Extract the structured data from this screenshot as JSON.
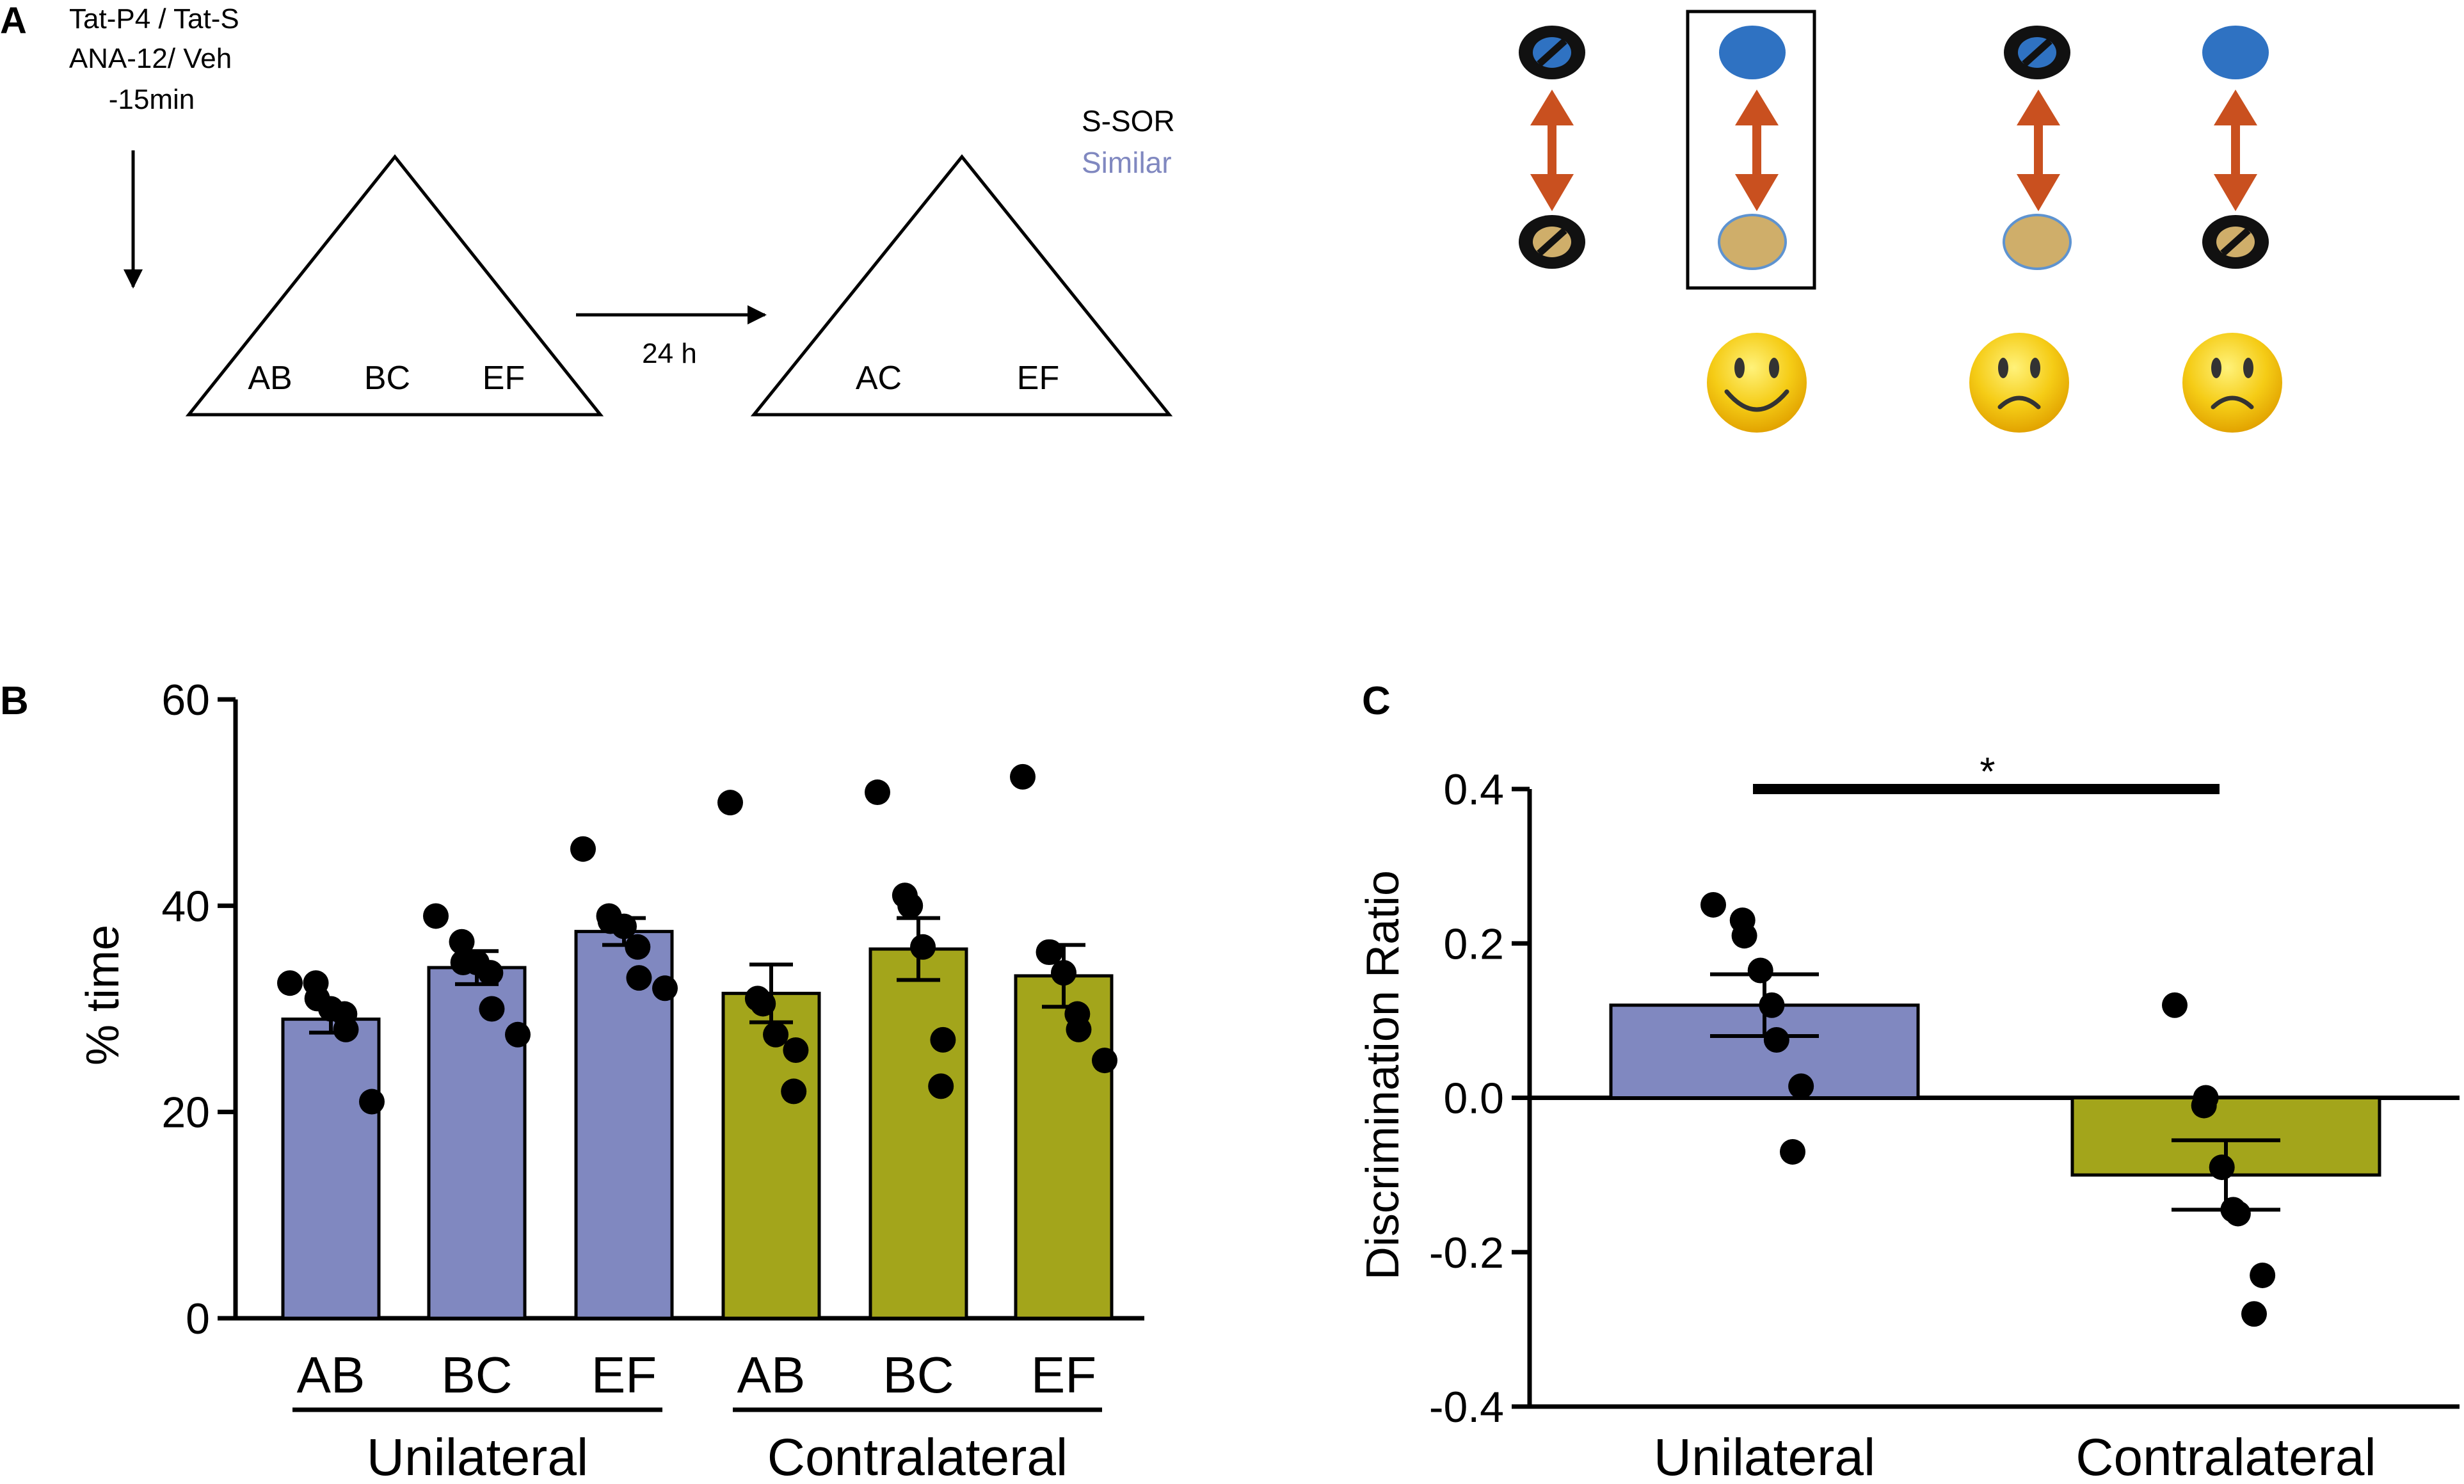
{
  "panel_a": {
    "label": "A",
    "injection": [
      "Tat-P4 / Tat-S",
      "ANA-12/ Veh",
      "-15min"
    ],
    "delay_label": "24 h",
    "legend": {
      "task": "S-SOR",
      "condition": "Similar"
    },
    "sample_objects": [
      "AB",
      "BC",
      "EF"
    ],
    "test_objects": [
      "AC",
      "EF"
    ],
    "colors": {
      "arrow": "#c9501f",
      "blue": "#2f72c2",
      "tan": "#cfae6a",
      "face": "#f2c21a"
    }
  },
  "chart_data": [
    {
      "panel": "B",
      "type": "bar",
      "title": "",
      "ylabel": "% time",
      "xlabel": "",
      "ylim": [
        0,
        60
      ],
      "yticks": [
        0,
        20,
        40,
        60
      ],
      "categories": [
        "AB",
        "BC",
        "EF",
        "AB",
        "BC",
        "EF"
      ],
      "groups": [
        {
          "name": "Unilateral",
          "indices": [
            0,
            1,
            2
          ]
        },
        {
          "name": "Contralateral",
          "indices": [
            3,
            4,
            5
          ]
        }
      ],
      "values": [
        29,
        34,
        37.5,
        31.5,
        35.8,
        33.2
      ],
      "sem": [
        1.3,
        1.6,
        1.3,
        2.8,
        3.0,
        3.0
      ],
      "colors": [
        "#8088c0",
        "#8088c0",
        "#8088c0",
        "#a3a51b",
        "#a3a51b",
        "#a3a51b"
      ],
      "points": [
        [
          32.5,
          32.5,
          31,
          30,
          29.5,
          28,
          21
        ],
        [
          39,
          36.5,
          34.5,
          34.5,
          33.5,
          30,
          27.5
        ],
        [
          45.5,
          39,
          38.5,
          38,
          36,
          33,
          32
        ],
        [
          50,
          31,
          30.5,
          27.5,
          26,
          22
        ],
        [
          51,
          41,
          40,
          36,
          27,
          22.5
        ],
        [
          52.5,
          35.5,
          35.5,
          33.5,
          29.5,
          28,
          25
        ]
      ]
    },
    {
      "panel": "C",
      "type": "bar",
      "title": "",
      "ylabel": "Discrimination Ratio",
      "xlabel": "",
      "ylim": [
        -0.4,
        0.4
      ],
      "yticks": [
        -0.4,
        -0.2,
        0.0,
        0.2,
        0.4
      ],
      "ytick_labels": [
        "-0.4",
        "-0.2",
        "0.0",
        "0.2",
        "0.4"
      ],
      "categories": [
        "Unilateral",
        "Contralateral"
      ],
      "values": [
        0.12,
        -0.1
      ],
      "sem": [
        0.04,
        0.045
      ],
      "colors": [
        "#8088c0",
        "#a3a51b"
      ],
      "points": [
        [
          0.25,
          0.21,
          0.23,
          0.165,
          0.12,
          0.075,
          0.015,
          -0.07
        ],
        [
          0.12,
          0.0,
          -0.01,
          -0.09,
          -0.145,
          -0.15,
          -0.23,
          -0.28
        ]
      ],
      "significance": "*"
    }
  ]
}
